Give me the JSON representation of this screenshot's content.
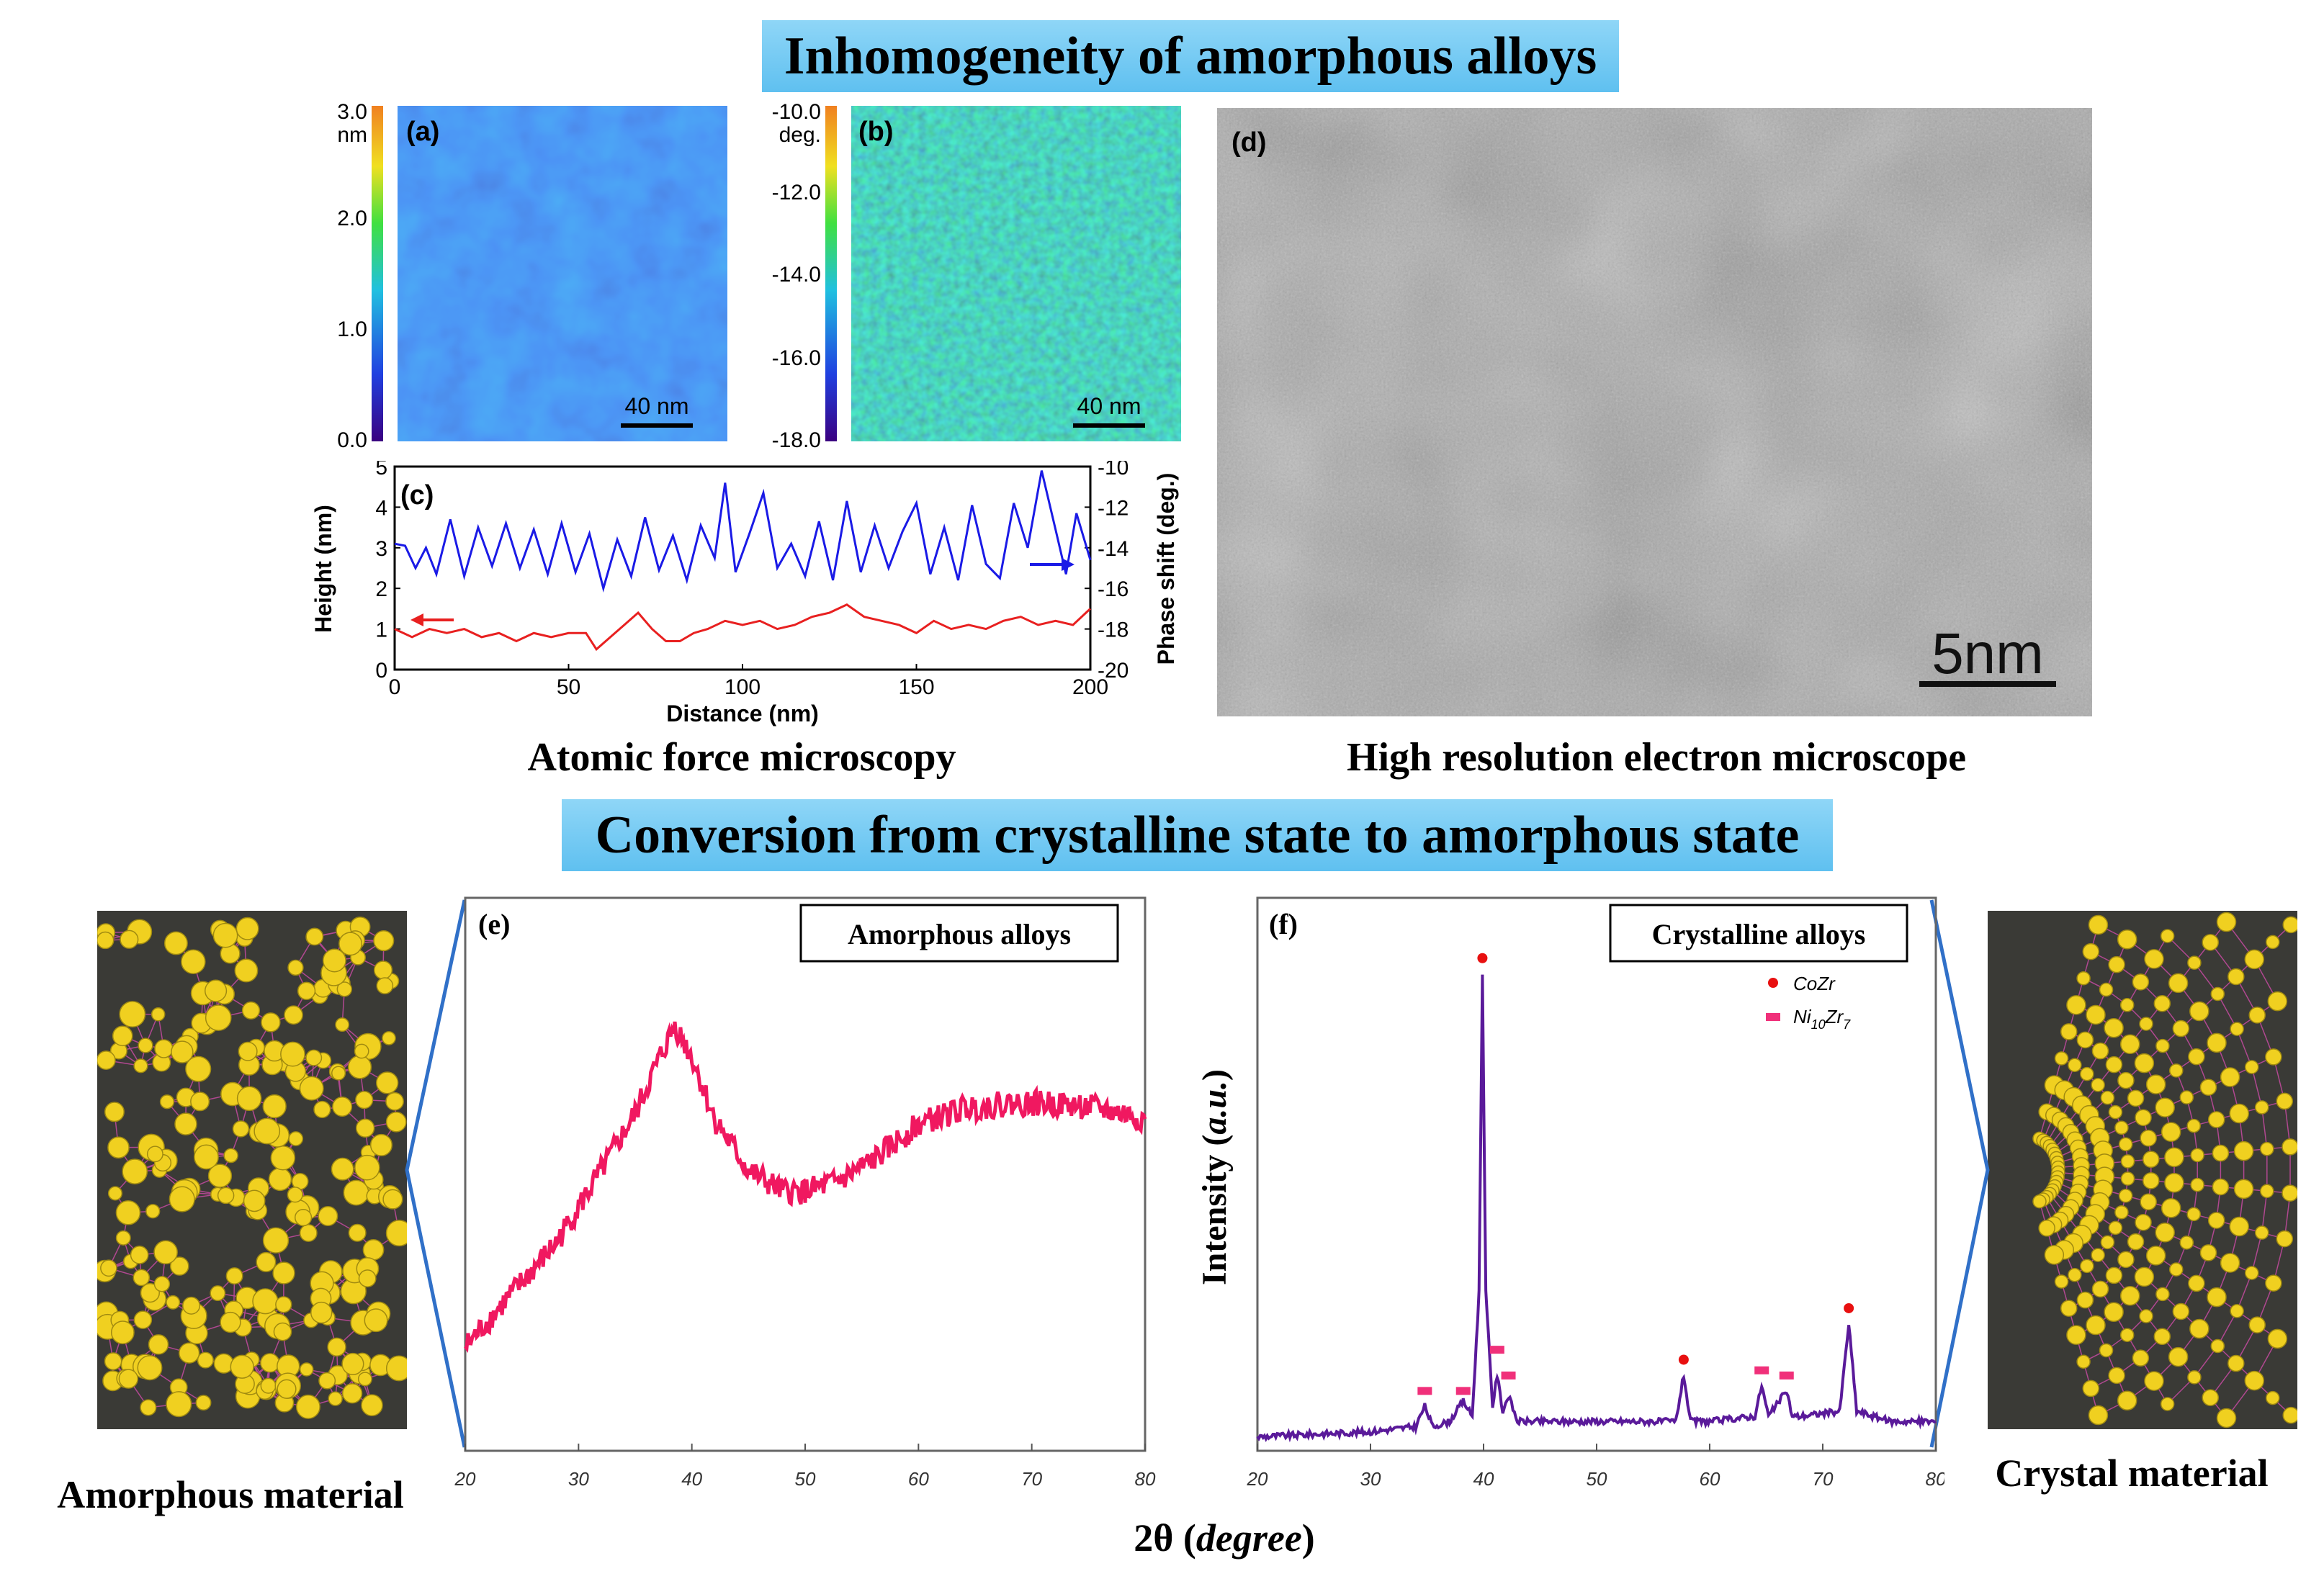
{
  "banner_top": "Inhomogeneity of amorphous alloys",
  "banner_mid": "Conversion from crystalline state to amorphous state",
  "caption_afm": "Atomic force microscopy",
  "caption_hrem": "High resolution electron microscope",
  "caption_amorphous": "Amorphous material",
  "caption_crystal": "Crystal material",
  "axis_2theta_base": "2θ (",
  "axis_2theta_unit": "degree",
  "axis_2theta_close": ")",
  "colors": {
    "blue_line": "#1a1ae6",
    "red_line": "#e82020",
    "pink_xrd": "#f01860",
    "purple_xrd": "#5a1a9a",
    "marker_red": "#e81010",
    "marker_pink": "#f0307a",
    "atom_yellow": "#f0d020",
    "connector_blue": "#3070c8"
  },
  "panel_a": {
    "label": "(a)",
    "unit": "nm",
    "ticks": [
      "3.0",
      "2.0",
      "1.0",
      "0.0"
    ],
    "scalebar": "40 nm"
  },
  "panel_b": {
    "label": "(b)",
    "unit": "deg.",
    "ticks": [
      "-10.0",
      "-12.0",
      "-14.0",
      "-16.0",
      "-18.0"
    ],
    "scalebar": "40 nm"
  },
  "panel_d": {
    "label": "(d)",
    "scalebar": "5nm"
  },
  "chart_data": [
    {
      "type": "line",
      "title": "(c)",
      "xlabel": "Distance (nm)",
      "ylabel": "Height (nm)",
      "y2label": "Phase shift (deg.)",
      "xlim": [
        0,
        200
      ],
      "ylim": [
        0,
        5
      ],
      "y2lim": [
        -20,
        -10
      ],
      "xticks": [
        "0",
        "50",
        "100",
        "150",
        "200"
      ],
      "yticks": [
        "0",
        "1",
        "2",
        "3",
        "4",
        "5"
      ],
      "y2ticks": [
        "-10",
        "-12",
        "-14",
        "-16",
        "-18",
        "-20"
      ],
      "series": [
        {
          "name": "Phase shift",
          "axis": "right",
          "x": [
            0,
            3,
            6,
            9,
            12,
            16,
            20,
            24,
            28,
            32,
            36,
            40,
            44,
            48,
            52,
            56,
            60,
            64,
            68,
            72,
            76,
            80,
            84,
            88,
            92,
            95,
            98,
            102,
            106,
            110,
            114,
            118,
            122,
            126,
            130,
            134,
            138,
            142,
            146,
            150,
            154,
            158,
            162,
            166,
            170,
            174,
            178,
            182,
            186,
            190,
            193,
            196,
            200
          ],
          "y": [
            -13.8,
            -13.9,
            -15.0,
            -14.0,
            -15.3,
            -12.6,
            -15.4,
            -13.0,
            -14.9,
            -12.8,
            -15.0,
            -13.1,
            -15.3,
            -12.8,
            -15.2,
            -13.3,
            -16.0,
            -13.6,
            -15.4,
            -12.5,
            -15.1,
            -13.4,
            -15.6,
            -12.9,
            -14.5,
            -10.8,
            -15.2,
            -13.3,
            -11.3,
            -15.0,
            -13.8,
            -15.4,
            -12.7,
            -15.6,
            -11.7,
            -15.2,
            -12.9,
            -15.0,
            -13.2,
            -11.8,
            -15.3,
            -13.0,
            -15.6,
            -11.9,
            -14.8,
            -15.5,
            -11.8,
            -14.0,
            -10.2,
            -13.1,
            -15.3,
            -12.3,
            -14.6
          ]
        },
        {
          "name": "Height",
          "axis": "left",
          "x": [
            0,
            5,
            10,
            15,
            20,
            25,
            30,
            35,
            40,
            45,
            50,
            55,
            58,
            62,
            66,
            70,
            74,
            78,
            82,
            86,
            90,
            95,
            100,
            105,
            110,
            115,
            120,
            125,
            130,
            135,
            140,
            145,
            150,
            155,
            160,
            165,
            170,
            175,
            180,
            185,
            190,
            195,
            200
          ],
          "y": [
            1.0,
            0.8,
            1.0,
            0.9,
            1.0,
            0.8,
            0.9,
            0.7,
            0.9,
            0.8,
            0.9,
            0.9,
            0.5,
            0.8,
            1.1,
            1.4,
            1.0,
            0.7,
            0.7,
            0.9,
            1.0,
            1.2,
            1.1,
            1.2,
            1.0,
            1.1,
            1.3,
            1.4,
            1.6,
            1.3,
            1.2,
            1.1,
            0.9,
            1.2,
            1.0,
            1.1,
            1.0,
            1.2,
            1.3,
            1.1,
            1.2,
            1.1,
            1.5
          ]
        }
      ],
      "annotations": [
        "arrow pointing left on red curve (Height axis)",
        "arrow pointing right on blue curve (Phase axis)"
      ]
    },
    {
      "type": "line",
      "title": "(e)",
      "legend": "Amorphous alloys",
      "xlim": [
        20,
        80
      ],
      "xticks": [
        "20",
        "30",
        "40",
        "50",
        "60",
        "70",
        "80"
      ],
      "series": [
        {
          "name": "Amorphous alloys",
          "x": [
            20,
            24,
            28,
            32,
            35,
            37,
            38.5,
            40,
            42,
            45,
            48,
            50,
            53,
            56,
            60,
            64,
            68,
            72,
            76,
            80
          ],
          "y": [
            0.2,
            0.3,
            0.4,
            0.54,
            0.65,
            0.75,
            0.82,
            0.76,
            0.64,
            0.54,
            0.5,
            0.5,
            0.52,
            0.56,
            0.63,
            0.66,
            0.67,
            0.67,
            0.66,
            0.64
          ]
        }
      ]
    },
    {
      "type": "line",
      "title": "(f)",
      "legend": "Crystalline alloys",
      "ylabel": "Intensity (a.u.)",
      "xlim": [
        20,
        80
      ],
      "xticks": [
        "20",
        "30",
        "40",
        "50",
        "60",
        "70",
        "80"
      ],
      "series": [
        {
          "name": "Crystalline alloys",
          "x": [
            20,
            30,
            34,
            34.8,
            35.5,
            37,
            38.2,
            39,
            39.6,
            39.9,
            40.2,
            40.8,
            41.2,
            41.7,
            42.2,
            43,
            50,
            57,
            57.7,
            58.3,
            60,
            64,
            64.6,
            65.2,
            66.8,
            67.3,
            68,
            71.5,
            72.3,
            73,
            76,
            80
          ],
          "y": [
            0.02,
            0.03,
            0.04,
            0.08,
            0.04,
            0.05,
            0.09,
            0.06,
            0.3,
            0.92,
            0.3,
            0.08,
            0.14,
            0.07,
            0.1,
            0.05,
            0.05,
            0.05,
            0.14,
            0.05,
            0.05,
            0.06,
            0.12,
            0.06,
            0.11,
            0.06,
            0.06,
            0.07,
            0.24,
            0.07,
            0.05,
            0.05
          ]
        }
      ],
      "markers": [
        {
          "name": "CoZr",
          "x": [
            39.9,
            57.7,
            72.3
          ],
          "y": [
            0.95,
            0.17,
            0.27
          ]
        },
        {
          "name": "Ni10Zr7",
          "x": [
            34.8,
            38.2,
            41.2,
            42.2,
            64.6,
            66.8
          ],
          "y": [
            0.11,
            0.11,
            0.19,
            0.14,
            0.15,
            0.14
          ]
        }
      ],
      "legend_entries": [
        {
          "main": "CoZr",
          "sub": ""
        },
        {
          "main": "Ni",
          "sub": "10",
          "main2": "Zr",
          "sub2": "7"
        }
      ]
    }
  ],
  "ylabel_f_prefix": "Intensity (",
  "ylabel_f_unit": "a.u.",
  "ylabel_f_suffix": ")"
}
